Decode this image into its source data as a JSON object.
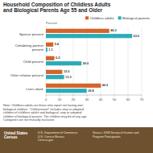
{
  "chart_data": {
    "type": "bar",
    "orientation": "horizontal",
    "title": "Household Composition of Childless Adults\nand Biological Parents Age 55 and Older",
    "categories": [
      "Spouse present",
      "Cohabiting partner\npresent",
      "Child present",
      "Other relative present",
      "Lives alone"
    ],
    "series": [
      {
        "name": "Childless adults",
        "color": "#D4632A",
        "values": [
          46.3,
          5.4,
          6.2,
          12.0,
          40.2
        ],
        "value_labels": [
          "46.3",
          "5.4",
          "6.2",
          "12.0",
          "40.2"
        ]
      },
      {
        "name": "Biological parents",
        "color": "#2AACB8",
        "values": [
          63.0,
          1.1,
          26.0,
          13.3,
          29.8
        ],
        "value_labels": [
          "63.0",
          "1.1",
          "26.0",
          "13.3",
          "29.8"
        ]
      }
    ],
    "xlabel": "Percent",
    "xlim": [
      0,
      70
    ],
    "xticks": [
      0,
      10,
      20,
      30,
      40,
      50,
      60,
      70
    ],
    "grid": true,
    "data_labels": true,
    "legend": "upper right",
    "annotations": [
      "Note: Childless adults are those who report not having own\nbiological children. \"Child present\" includes step or adopted\nchildren of childless adults and biological, step or adopted\nchildren of biological parents. The children may be of any age.\nCategories are not mutually exclusive.",
      "United States\nCensus",
      "U.S. Department of Commerce\nU.S. Census Bureau\nCensus.gov",
      "Source: 2008 Survey of Income and\nProgram Participation"
    ]
  }
}
